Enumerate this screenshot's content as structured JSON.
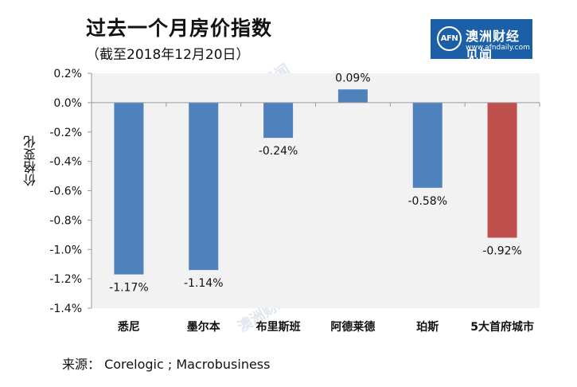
{
  "header": {
    "title": "过去一个月房价指数",
    "subtitle": "（截至2018年12月20日）"
  },
  "logo": {
    "abbr": "AFN",
    "name": "澳洲财经见闻",
    "url": "www.afndaily.com",
    "color": "#1b5fa6"
  },
  "watermark": "澳洲财经见闻",
  "source": "来源： Corelogic ; Macrobusiness",
  "chart_data": {
    "type": "bar",
    "categories": [
      "悉尼",
      "墨尔本",
      "布里斯班",
      "阿德莱德",
      "珀斯",
      "5大首府城市"
    ],
    "values": [
      -1.17,
      -1.14,
      -0.24,
      0.09,
      -0.58,
      -0.92
    ],
    "data_labels": [
      "-1.17%",
      "-1.14%",
      "-0.24%",
      "0.09%",
      "-0.58%",
      "-0.92%"
    ],
    "colors": [
      "#4f81bd",
      "#4f81bd",
      "#4f81bd",
      "#4f81bd",
      "#4f81bd",
      "#c0504d"
    ],
    "ylabel": "价格变化",
    "ylim": [
      -1.4,
      0.2
    ],
    "yticks": [
      0.2,
      0.0,
      -0.2,
      -0.4,
      -0.6,
      -0.8,
      -1.0,
      -1.2,
      -1.4
    ],
    "ytick_labels": [
      "0.2%",
      "0.0%",
      "-0.2%",
      "-0.4%",
      "-0.6%",
      "-0.8%",
      "-1.0%",
      "-1.2%",
      "-1.4%"
    ],
    "grid": false,
    "legend": "none",
    "plot_background": "#f2f2f2"
  }
}
